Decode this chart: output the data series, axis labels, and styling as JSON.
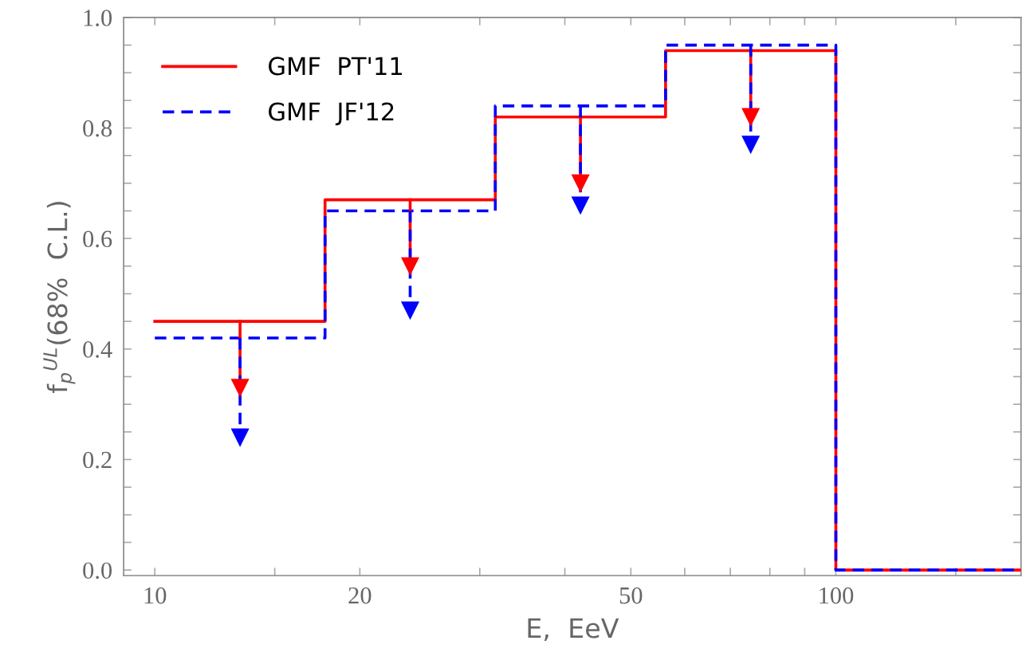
{
  "chart_data": {
    "type": "step",
    "xlabel": "E,  EeV",
    "ylabel": "f$_{p}$$^{UL}$(68%  C.L.)",
    "log": "x",
    "xlim": [
      9.0,
      187
    ],
    "ylim": [
      -0.01,
      1.0
    ],
    "xticks": [
      10,
      {
        "value": 15,
        "label": null
      },
      20,
      {
        "value": 30,
        "label": null
      },
      {
        "value": 40,
        "label": null
      },
      50,
      {
        "value": 60,
        "label": null
      },
      {
        "value": 70,
        "label": null
      },
      {
        "value": 80,
        "label": null
      },
      {
        "value": 90,
        "label": null
      },
      100,
      {
        "value": 150,
        "label": null
      }
    ],
    "yticks": [
      {
        "value": 0,
        "label": "0.0"
      },
      {
        "value": 0.05,
        "label": null
      },
      {
        "value": 0.1,
        "label": null
      },
      {
        "value": 0.15,
        "label": null
      },
      0.2,
      {
        "value": 0.25,
        "label": null
      },
      {
        "value": 0.3,
        "label": null
      },
      {
        "value": 0.35,
        "label": null
      },
      0.4,
      {
        "value": 0.45,
        "label": null
      },
      {
        "value": 0.5,
        "label": null
      },
      {
        "value": 0.55,
        "label": null
      },
      0.6,
      {
        "value": 0.65,
        "label": null
      },
      {
        "value": 0.7,
        "label": null
      },
      {
        "value": 0.75,
        "label": null
      },
      0.8,
      {
        "value": 0.85,
        "label": null
      },
      {
        "value": 0.9,
        "label": null
      },
      {
        "value": 0.95,
        "label": null
      },
      {
        "value": 1.0,
        "label": "1.0"
      }
    ],
    "grid": false,
    "legend": "top left",
    "series": [
      {
        "name": "GMF  PT'11",
        "color": "#ff0000",
        "line_style": "solid",
        "x": [
          10,
          17.78,
          31.62,
          56.23,
          100,
          187
        ],
        "values": [
          0.45,
          0.67,
          0.82,
          0.94,
          0,
          0
        ]
      },
      {
        "name": "GMF  JF'12",
        "color": "#0000ff",
        "line_style": "dashed",
        "x": [
          10,
          17.78,
          31.62,
          56.23,
          100,
          187
        ],
        "values": [
          0.42,
          0.65,
          0.84,
          0.95,
          0,
          0
        ]
      },
      {
        "type": "scatter",
        "color": "#ff0000",
        "line_style": "solid",
        "marker": "triangle",
        "x": [
          13.34,
          23.71,
          42.17,
          74.99
        ],
        "values": [
          0.33,
          0.55,
          0.7,
          0.82
        ],
        "errors": [
          [
            0.33,
            0.45
          ],
          [
            0.55,
            0.67
          ],
          [
            0.7,
            0.82
          ],
          [
            0.82,
            0.94
          ]
        ]
      },
      {
        "type": "scatter",
        "color": "#0000ff",
        "line_style": "dashed",
        "marker": "triangle",
        "x": [
          13.34,
          23.71,
          42.17,
          74.99
        ],
        "values": [
          0.24,
          0.47,
          0.66,
          0.77
        ],
        "errors": [
          [
            0.24,
            0.42
          ],
          [
            0.47,
            0.65
          ],
          [
            0.66,
            0.84
          ],
          [
            0.77,
            0.95
          ]
        ]
      }
    ]
  }
}
